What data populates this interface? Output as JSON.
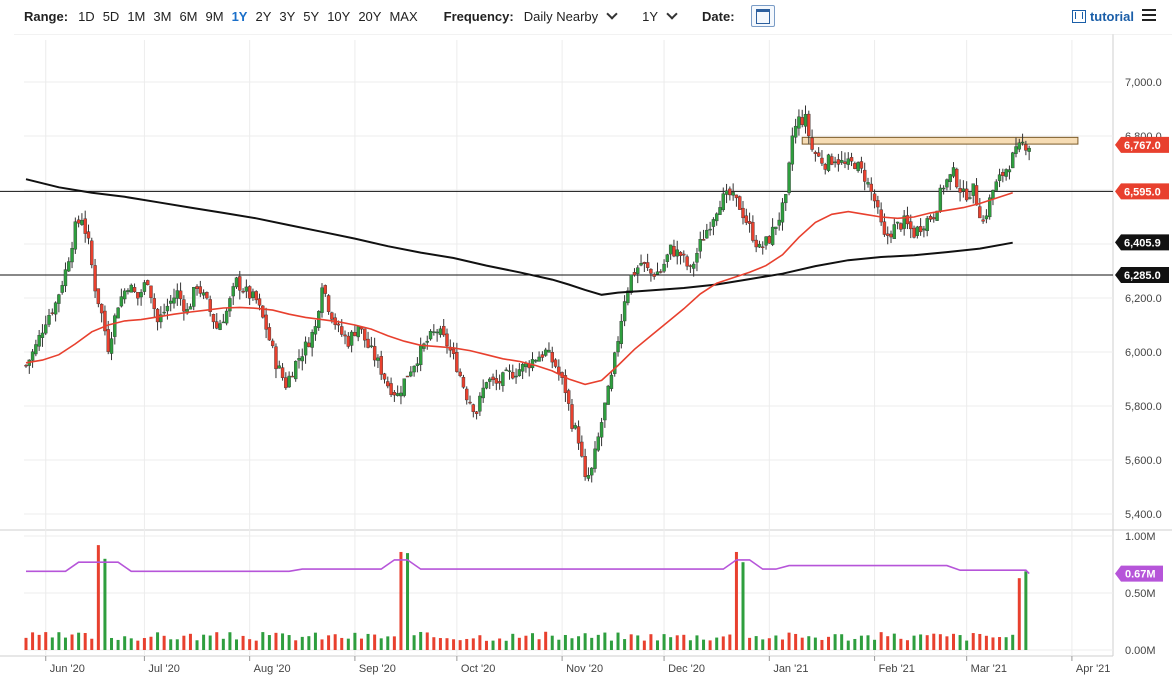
{
  "toolbar": {
    "range_label": "Range:",
    "ranges": [
      "1D",
      "5D",
      "1M",
      "3M",
      "6M",
      "9M",
      "1Y",
      "2Y",
      "3Y",
      "5Y",
      "10Y",
      "20Y",
      "MAX"
    ],
    "active_range": "1Y",
    "frequency_label": "Frequency:",
    "frequency_value": "Daily Nearby",
    "period_value": "1Y",
    "date_label": "Date:",
    "tutorial_label": "tutorial"
  },
  "chart_data": {
    "type": "candlestick",
    "price_panel": {
      "ylim": [
        5400,
        7000
      ],
      "yticks": [
        {
          "value": 5400,
          "label": "5,400.0"
        },
        {
          "value": 5600,
          "label": "5,600.0"
        },
        {
          "value": 5800,
          "label": "5,800.0"
        },
        {
          "value": 6000,
          "label": "6,000.0"
        },
        {
          "value": 6200,
          "label": "6,200.0"
        },
        {
          "value": 6400,
          "label": "6,400.0"
        },
        {
          "value": 6600,
          "label": "6,600.0"
        },
        {
          "value": 6800,
          "label": "6,800.0"
        },
        {
          "value": 7000,
          "label": "7,000.0"
        }
      ],
      "horizontal_lines": [
        6595.0,
        6285.0
      ],
      "resistance_zone": [
        6770,
        6795
      ],
      "price_labels": [
        {
          "value": 6767.0,
          "label": "6,767.0",
          "color": "#e8402e"
        },
        {
          "value": 6595.0,
          "label": "6,595.0",
          "color": "#e8402e"
        },
        {
          "value": 6405.9,
          "label": "6,405.9",
          "color": "#111111"
        },
        {
          "value": 6285.0,
          "label": "6,285.0",
          "color": "#111111"
        }
      ],
      "ma_fast_color": "#e8402e",
      "ma_slow_color": "#111111",
      "ma_fast": [
        [
          0,
          5960
        ],
        [
          5,
          5970
        ],
        [
          10,
          5990
        ],
        [
          15,
          6030
        ],
        [
          20,
          6075
        ],
        [
          25,
          6100
        ],
        [
          30,
          6115
        ],
        [
          35,
          6120
        ],
        [
          40,
          6130
        ],
        [
          45,
          6140
        ],
        [
          50,
          6148
        ],
        [
          55,
          6155
        ],
        [
          60,
          6163
        ],
        [
          65,
          6165
        ],
        [
          70,
          6162
        ],
        [
          75,
          6155
        ],
        [
          80,
          6140
        ],
        [
          85,
          6128
        ],
        [
          90,
          6120
        ],
        [
          95,
          6112
        ],
        [
          100,
          6100
        ],
        [
          105,
          6085
        ],
        [
          110,
          6060
        ],
        [
          115,
          6040
        ],
        [
          120,
          6025
        ],
        [
          125,
          6020
        ],
        [
          130,
          6015
        ],
        [
          135,
          6005
        ],
        [
          140,
          5990
        ],
        [
          145,
          5975
        ],
        [
          150,
          5965
        ],
        [
          155,
          5950
        ],
        [
          160,
          5930
        ],
        [
          165,
          5900
        ],
        [
          170,
          5880
        ],
        [
          175,
          5895
        ],
        [
          180,
          5950
        ],
        [
          185,
          6010
        ],
        [
          190,
          6060
        ],
        [
          195,
          6110
        ],
        [
          200,
          6160
        ],
        [
          205,
          6215
        ],
        [
          210,
          6255
        ],
        [
          215,
          6275
        ],
        [
          220,
          6295
        ],
        [
          225,
          6320
        ],
        [
          230,
          6360
        ],
        [
          235,
          6425
        ],
        [
          240,
          6480
        ],
        [
          245,
          6510
        ],
        [
          250,
          6520
        ],
        [
          255,
          6510
        ],
        [
          260,
          6500
        ],
        [
          265,
          6495
        ],
        [
          270,
          6500
        ],
        [
          275,
          6515
        ],
        [
          280,
          6525
        ],
        [
          285,
          6535
        ],
        [
          290,
          6550
        ],
        [
          295,
          6570
        ],
        [
          300,
          6590
        ]
      ],
      "ma_slow": [
        [
          0,
          6640
        ],
        [
          10,
          6610
        ],
        [
          20,
          6590
        ],
        [
          30,
          6575
        ],
        [
          40,
          6555
        ],
        [
          50,
          6535
        ],
        [
          60,
          6515
        ],
        [
          70,
          6495
        ],
        [
          80,
          6470
        ],
        [
          90,
          6445
        ],
        [
          100,
          6420
        ],
        [
          110,
          6392
        ],
        [
          120,
          6368
        ],
        [
          130,
          6348
        ],
        [
          140,
          6320
        ],
        [
          150,
          6295
        ],
        [
          160,
          6268
        ],
        [
          165,
          6250
        ],
        [
          170,
          6230
        ],
        [
          175,
          6212
        ],
        [
          180,
          6220
        ],
        [
          190,
          6228
        ],
        [
          200,
          6237
        ],
        [
          210,
          6250
        ],
        [
          220,
          6270
        ],
        [
          230,
          6290
        ],
        [
          240,
          6318
        ],
        [
          250,
          6340
        ],
        [
          260,
          6352
        ],
        [
          270,
          6358
        ],
        [
          280,
          6370
        ],
        [
          290,
          6383
        ],
        [
          300,
          6405
        ]
      ],
      "candles": [
        {
          "i": 0,
          "c": 5950
        },
        {
          "i": 3,
          "c": 6020
        },
        {
          "i": 6,
          "c": 6120
        },
        {
          "i": 9,
          "c": 6180
        },
        {
          "i": 12,
          "c": 6300
        },
        {
          "i": 15,
          "c": 6460
        },
        {
          "i": 17,
          "c": 6500
        },
        {
          "i": 19,
          "c": 6400
        },
        {
          "i": 21,
          "c": 6240
        },
        {
          "i": 23,
          "c": 6140
        },
        {
          "i": 25,
          "c": 6020
        },
        {
          "i": 28,
          "c": 6180
        },
        {
          "i": 31,
          "c": 6250
        },
        {
          "i": 34,
          "c": 6200
        },
        {
          "i": 37,
          "c": 6270
        },
        {
          "i": 40,
          "c": 6110
        },
        {
          "i": 43,
          "c": 6170
        },
        {
          "i": 46,
          "c": 6220
        },
        {
          "i": 49,
          "c": 6150
        },
        {
          "i": 52,
          "c": 6250
        },
        {
          "i": 55,
          "c": 6180
        },
        {
          "i": 58,
          "c": 6090
        },
        {
          "i": 61,
          "c": 6150
        },
        {
          "i": 64,
          "c": 6260
        },
        {
          "i": 67,
          "c": 6220
        },
        {
          "i": 70,
          "c": 6190
        },
        {
          "i": 73,
          "c": 6090
        },
        {
          "i": 76,
          "c": 5960
        },
        {
          "i": 79,
          "c": 5880
        },
        {
          "i": 82,
          "c": 5960
        },
        {
          "i": 85,
          "c": 6020
        },
        {
          "i": 88,
          "c": 6090
        },
        {
          "i": 90,
          "c": 6260
        },
        {
          "i": 92,
          "c": 6170
        },
        {
          "i": 95,
          "c": 6080
        },
        {
          "i": 98,
          "c": 6040
        },
        {
          "i": 101,
          "c": 6100
        },
        {
          "i": 104,
          "c": 6020
        },
        {
          "i": 107,
          "c": 5960
        },
        {
          "i": 110,
          "c": 5880
        },
        {
          "i": 113,
          "c": 5840
        },
        {
          "i": 116,
          "c": 5920
        },
        {
          "i": 119,
          "c": 5980
        },
        {
          "i": 122,
          "c": 6040
        },
        {
          "i": 125,
          "c": 6080
        },
        {
          "i": 128,
          "c": 6030
        },
        {
          "i": 131,
          "c": 5950
        },
        {
          "i": 134,
          "c": 5840
        },
        {
          "i": 137,
          "c": 5780
        },
        {
          "i": 140,
          "c": 5900
        },
        {
          "i": 143,
          "c": 5880
        },
        {
          "i": 146,
          "c": 5910
        },
        {
          "i": 149,
          "c": 5930
        },
        {
          "i": 152,
          "c": 5950
        },
        {
          "i": 155,
          "c": 5980
        },
        {
          "i": 158,
          "c": 6000
        },
        {
          "i": 161,
          "c": 5950
        },
        {
          "i": 164,
          "c": 5860
        },
        {
          "i": 166,
          "c": 5740
        },
        {
          "i": 168,
          "c": 5680
        },
        {
          "i": 170,
          "c": 5520
        },
        {
          "i": 172,
          "c": 5560
        },
        {
          "i": 174,
          "c": 5680
        },
        {
          "i": 176,
          "c": 5800
        },
        {
          "i": 178,
          "c": 5900
        },
        {
          "i": 180,
          "c": 6050
        },
        {
          "i": 182,
          "c": 6200
        },
        {
          "i": 184,
          "c": 6280
        },
        {
          "i": 187,
          "c": 6330
        },
        {
          "i": 190,
          "c": 6290
        },
        {
          "i": 193,
          "c": 6300
        },
        {
          "i": 196,
          "c": 6380
        },
        {
          "i": 199,
          "c": 6360
        },
        {
          "i": 202,
          "c": 6300
        },
        {
          "i": 205,
          "c": 6400
        },
        {
          "i": 208,
          "c": 6480
        },
        {
          "i": 211,
          "c": 6560
        },
        {
          "i": 214,
          "c": 6580
        },
        {
          "i": 217,
          "c": 6540
        },
        {
          "i": 220,
          "c": 6460
        },
        {
          "i": 223,
          "c": 6380
        },
        {
          "i": 226,
          "c": 6420
        },
        {
          "i": 229,
          "c": 6500
        },
        {
          "i": 231,
          "c": 6560
        },
        {
          "i": 233,
          "c": 6800
        },
        {
          "i": 235,
          "c": 6860
        },
        {
          "i": 237,
          "c": 6860
        },
        {
          "i": 239,
          "c": 6750
        },
        {
          "i": 241,
          "c": 6720
        },
        {
          "i": 243,
          "c": 6700
        },
        {
          "i": 246,
          "c": 6720
        },
        {
          "i": 249,
          "c": 6690
        },
        {
          "i": 252,
          "c": 6700
        },
        {
          "i": 255,
          "c": 6650
        },
        {
          "i": 258,
          "c": 6560
        },
        {
          "i": 261,
          "c": 6420
        },
        {
          "i": 264,
          "c": 6460
        },
        {
          "i": 267,
          "c": 6480
        },
        {
          "i": 270,
          "c": 6440
        },
        {
          "i": 273,
          "c": 6480
        },
        {
          "i": 276,
          "c": 6510
        },
        {
          "i": 279,
          "c": 6620
        },
        {
          "i": 282,
          "c": 6660
        },
        {
          "i": 285,
          "c": 6580
        },
        {
          "i": 288,
          "c": 6600
        },
        {
          "i": 291,
          "c": 6480
        },
        {
          "i": 294,
          "c": 6600
        },
        {
          "i": 297,
          "c": 6660
        },
        {
          "i": 300,
          "c": 6720
        },
        {
          "i": 303,
          "c": 6770
        },
        {
          "i": 305,
          "c": 6767
        }
      ]
    },
    "volume_panel": {
      "ylim": [
        0,
        1.0
      ],
      "yticks": [
        {
          "value": 0.0,
          "label": "0.00M"
        },
        {
          "value": 0.5,
          "label": "0.50M"
        },
        {
          "value": 1.0,
          "label": "1.00M"
        }
      ],
      "last_label": "0.67M",
      "last_value": 0.67,
      "avg_color": "#b655d9",
      "avg_level": 0.69,
      "spikes": [
        {
          "i": 22,
          "v": 0.92,
          "color": "#e8402e"
        },
        {
          "i": 24,
          "v": 0.8,
          "color": "#2e9e3e"
        },
        {
          "i": 114,
          "v": 0.86,
          "color": "#e8402e"
        },
        {
          "i": 116,
          "v": 0.85,
          "color": "#2e9e3e"
        },
        {
          "i": 216,
          "v": 0.86,
          "color": "#e8402e"
        },
        {
          "i": 218,
          "v": 0.77,
          "color": "#2e9e3e"
        },
        {
          "i": 302,
          "v": 0.63,
          "color": "#e8402e"
        },
        {
          "i": 304,
          "v": 0.69,
          "color": "#2e9e3e"
        }
      ]
    },
    "x_axis": {
      "n": 306,
      "labels": [
        {
          "i": 6,
          "label": "Jun '20"
        },
        {
          "i": 36,
          "label": "Jul '20"
        },
        {
          "i": 68,
          "label": "Aug '20"
        },
        {
          "i": 100,
          "label": "Sep '20"
        },
        {
          "i": 131,
          "label": "Oct '20"
        },
        {
          "i": 163,
          "label": "Nov '20"
        },
        {
          "i": 194,
          "label": "Dec '20"
        },
        {
          "i": 226,
          "label": "Jan '21"
        },
        {
          "i": 258,
          "label": "Feb '21"
        },
        {
          "i": 286,
          "label": "Mar '21"
        },
        {
          "i": 318,
          "label": "Apr '21"
        }
      ]
    }
  }
}
